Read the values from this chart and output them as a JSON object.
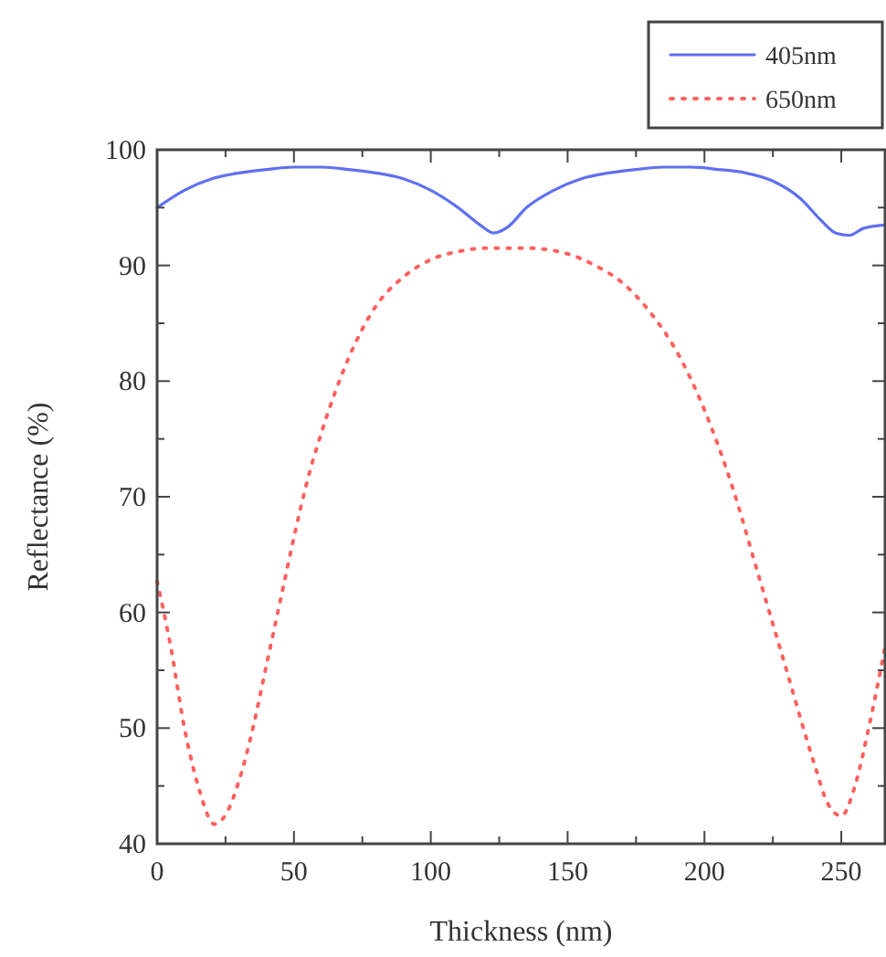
{
  "chart_data": {
    "type": "line",
    "xlabel": "Thickness (nm)",
    "ylabel": "Reflectance (%)",
    "xlim": [
      0,
      266
    ],
    "ylim": [
      40,
      100
    ],
    "xticks": [
      0,
      {
        "value": 25,
        "label": null
      },
      50,
      {
        "value": 75,
        "label": null
      },
      100,
      {
        "value": 125,
        "label": null
      },
      150,
      {
        "value": 175,
        "label": null
      },
      200,
      {
        "value": 225,
        "label": null
      },
      250
    ],
    "yticks": [
      40,
      {
        "value": 45,
        "label": null
      },
      50,
      {
        "value": 55,
        "label": null
      },
      60,
      {
        "value": 65,
        "label": null
      },
      70,
      {
        "value": 75,
        "label": null
      },
      80,
      {
        "value": 85,
        "label": null
      },
      90,
      {
        "value": 95,
        "label": null
      },
      100
    ],
    "grid": false,
    "legend": "top right",
    "series": [
      {
        "name": "405nm",
        "color": "#6070f0",
        "line_style": "solid",
        "x": [
          0,
          10,
          20,
          30,
          40,
          50,
          60,
          70,
          80,
          90,
          100,
          110,
          118,
          123,
          128,
          135,
          145,
          155,
          165,
          175,
          185,
          195,
          205,
          215,
          225,
          235,
          243,
          248,
          253,
          258,
          266
        ],
        "values": [
          95,
          96.5,
          97.5,
          98,
          98.3,
          98.5,
          98.5,
          98.3,
          98,
          97.5,
          96.5,
          95,
          93.5,
          92.8,
          93.3,
          95,
          96.5,
          97.5,
          98,
          98.3,
          98.5,
          98.5,
          98.3,
          98,
          97.3,
          95.8,
          93.8,
          92.8,
          92.6,
          93.2,
          93.5
        ]
      },
      {
        "name": "650nm",
        "color": "#ff6060",
        "line_style": "dotted",
        "x": [
          0,
          5,
          10,
          15,
          21,
          25,
          30,
          35,
          40,
          45,
          50,
          55,
          60,
          70,
          80,
          90,
          100,
          110,
          120,
          135,
          150,
          160,
          170,
          180,
          190,
          200,
          210,
          220,
          230,
          240,
          245,
          250,
          255,
          260,
          266
        ],
        "values": [
          62.7,
          57,
          50,
          45,
          41.7,
          42.5,
          45.5,
          50,
          55.5,
          61,
          66.5,
          71.5,
          75.5,
          82,
          86.5,
          89,
          90.5,
          91.2,
          91.5,
          91.5,
          91,
          90,
          88.5,
          86,
          82.5,
          77.5,
          71,
          63,
          55,
          47,
          43.5,
          42.4,
          45,
          50,
          57
        ]
      }
    ]
  }
}
